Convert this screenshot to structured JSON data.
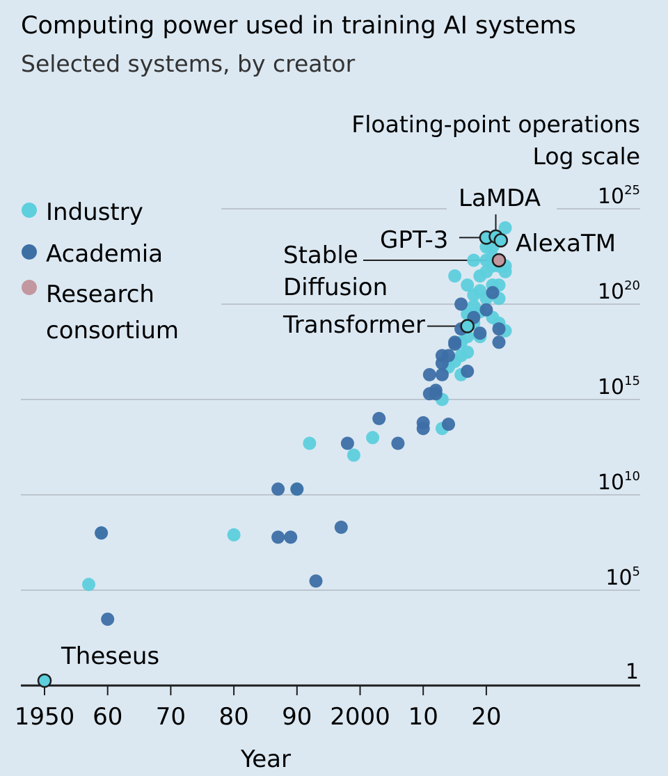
{
  "chart_data": {
    "type": "scatter",
    "title": "Computing power used in training AI systems",
    "subtitle": "Selected systems, by creator",
    "ylabel": "Floating-point operations",
    "yscale_note": "Log scale",
    "xlabel": "Year",
    "y_scale": "log",
    "y_ticks": [
      {
        "value": 1,
        "base": "1",
        "exp": ""
      },
      {
        "value": 100000,
        "base": "10",
        "exp": "5"
      },
      {
        "value": 10000000000,
        "base": "10",
        "exp": "10"
      },
      {
        "value": 1000000000000000.0,
        "base": "10",
        "exp": "15"
      },
      {
        "value": 1e+20,
        "base": "10",
        "exp": "20"
      },
      {
        "value": 1e+25,
        "base": "10",
        "exp": "25"
      }
    ],
    "x_ticks": [
      {
        "value": 1950,
        "label": "1950"
      },
      {
        "value": 1960,
        "label": "60"
      },
      {
        "value": 1970,
        "label": "70"
      },
      {
        "value": 1980,
        "label": "80"
      },
      {
        "value": 1990,
        "label": "90"
      },
      {
        "value": 2000,
        "label": "2000"
      },
      {
        "value": 2010,
        "label": "10"
      },
      {
        "value": 2020,
        "label": "20"
      }
    ],
    "xlim": [
      1946,
      2042
    ],
    "ylim": [
      1,
      1e+25
    ],
    "grid": true,
    "legend_position": "top-left",
    "colors": {
      "Industry": "#5ecfdc",
      "Academia": "#3d6fa5",
      "Research consortium": "#c2979f",
      "background": "#dbe8f2",
      "gridline": "#b1b9c2",
      "axis": "#1e1e1e"
    },
    "series": [
      {
        "name": "Industry",
        "points": [
          [
            1957,
            200000
          ],
          [
            1959,
            100000000
          ],
          [
            1980,
            80000000
          ],
          [
            1990,
            20000000000
          ],
          [
            1992,
            5000000000000.0
          ],
          [
            1999,
            1200000000000.0
          ],
          [
            2002,
            10000000000000.0
          ],
          [
            2013,
            30000000000000.0
          ],
          [
            2013,
            1000000000000000.0
          ],
          [
            2014,
            5e+16
          ],
          [
            2015,
            1e+17
          ],
          [
            2016,
            2e+16
          ],
          [
            2016,
            2e+17
          ],
          [
            2016,
            1e+18
          ],
          [
            2017,
            2e+18
          ],
          [
            2017,
            3e+17
          ],
          [
            2017,
            3e+19
          ],
          [
            2017,
            1e+21
          ],
          [
            2018,
            3e+20
          ],
          [
            2018,
            8e+19
          ],
          [
            2018,
            1e+19
          ],
          [
            2019,
            3e+21
          ],
          [
            2019,
            5e+20
          ],
          [
            2019,
            4e+19
          ],
          [
            2019,
            2e+18
          ],
          [
            2020,
            1e+23
          ],
          [
            2020,
            2e+22
          ],
          [
            2020,
            5e+21
          ],
          [
            2020,
            2e+20
          ],
          [
            2021,
            1e+23
          ],
          [
            2021,
            3e+22
          ],
          [
            2021,
            1e+22
          ],
          [
            2021,
            1e+21
          ],
          [
            2021,
            2e+19
          ],
          [
            2022,
            3e+23
          ],
          [
            2022,
            1e+22
          ],
          [
            2022,
            1e+21
          ],
          [
            2022,
            2e+20
          ],
          [
            2022,
            1e+19
          ],
          [
            2023,
            1e+24
          ],
          [
            2023,
            1e+22
          ],
          [
            2023,
            5e+21
          ],
          [
            2023,
            4e+18
          ],
          [
            2015,
            3e+21
          ],
          [
            2018,
            2e+22
          ]
        ]
      },
      {
        "name": "Academia",
        "points": [
          [
            1959,
            100000000
          ],
          [
            1960,
            3000
          ],
          [
            1987,
            20000000000
          ],
          [
            1987,
            60000000
          ],
          [
            1989,
            60000000
          ],
          [
            1990,
            20000000000
          ],
          [
            1993,
            300000
          ],
          [
            1997,
            200000000
          ],
          [
            1998,
            5000000000000.0
          ],
          [
            2003,
            100000000000000.0
          ],
          [
            2006,
            5000000000000.0
          ],
          [
            2010,
            30000000000000.0
          ],
          [
            2010,
            60000000000000.0
          ],
          [
            2011,
            2000000000000000.0
          ],
          [
            2011,
            2e+16
          ],
          [
            2012,
            2000000000000000.0
          ],
          [
            2012,
            3000000000000000.0
          ],
          [
            2013,
            2e+17
          ],
          [
            2013,
            2e+16
          ],
          [
            2013,
            8e+16
          ],
          [
            2014,
            50000000000000.0
          ],
          [
            2014,
            2e+17
          ],
          [
            2015,
            8e+17
          ],
          [
            2015,
            1e+18
          ],
          [
            2016,
            5e+18
          ],
          [
            2017,
            3e+16
          ],
          [
            2018,
            2e+19
          ],
          [
            2019,
            3e+18
          ],
          [
            2020,
            5e+19
          ],
          [
            2022,
            5e+18
          ],
          [
            2022,
            1e+18
          ],
          [
            2021,
            4e+20
          ],
          [
            2016,
            1e+20
          ]
        ]
      },
      {
        "name": "Research consortium",
        "points": []
      }
    ],
    "annotations": [
      {
        "label": "Theseus",
        "group": "Industry",
        "x": 1950,
        "y": 1.8
      },
      {
        "label": "Transformer",
        "group": "Industry",
        "x": 2017,
        "y": 7e+18
      },
      {
        "label": "Stable\nDiffusion",
        "group": "Research consortium",
        "x": 2022,
        "y": 2e+22
      },
      {
        "label": "GPT-3",
        "group": "Industry",
        "x": 2020,
        "y": 3.1e+23
      },
      {
        "label": "LaMDA",
        "group": "Industry",
        "x": 2021.5,
        "y": 3.5e+23
      },
      {
        "label": "AlexaTM",
        "group": "Industry",
        "x": 2022.3,
        "y": 2.2e+23
      }
    ]
  }
}
